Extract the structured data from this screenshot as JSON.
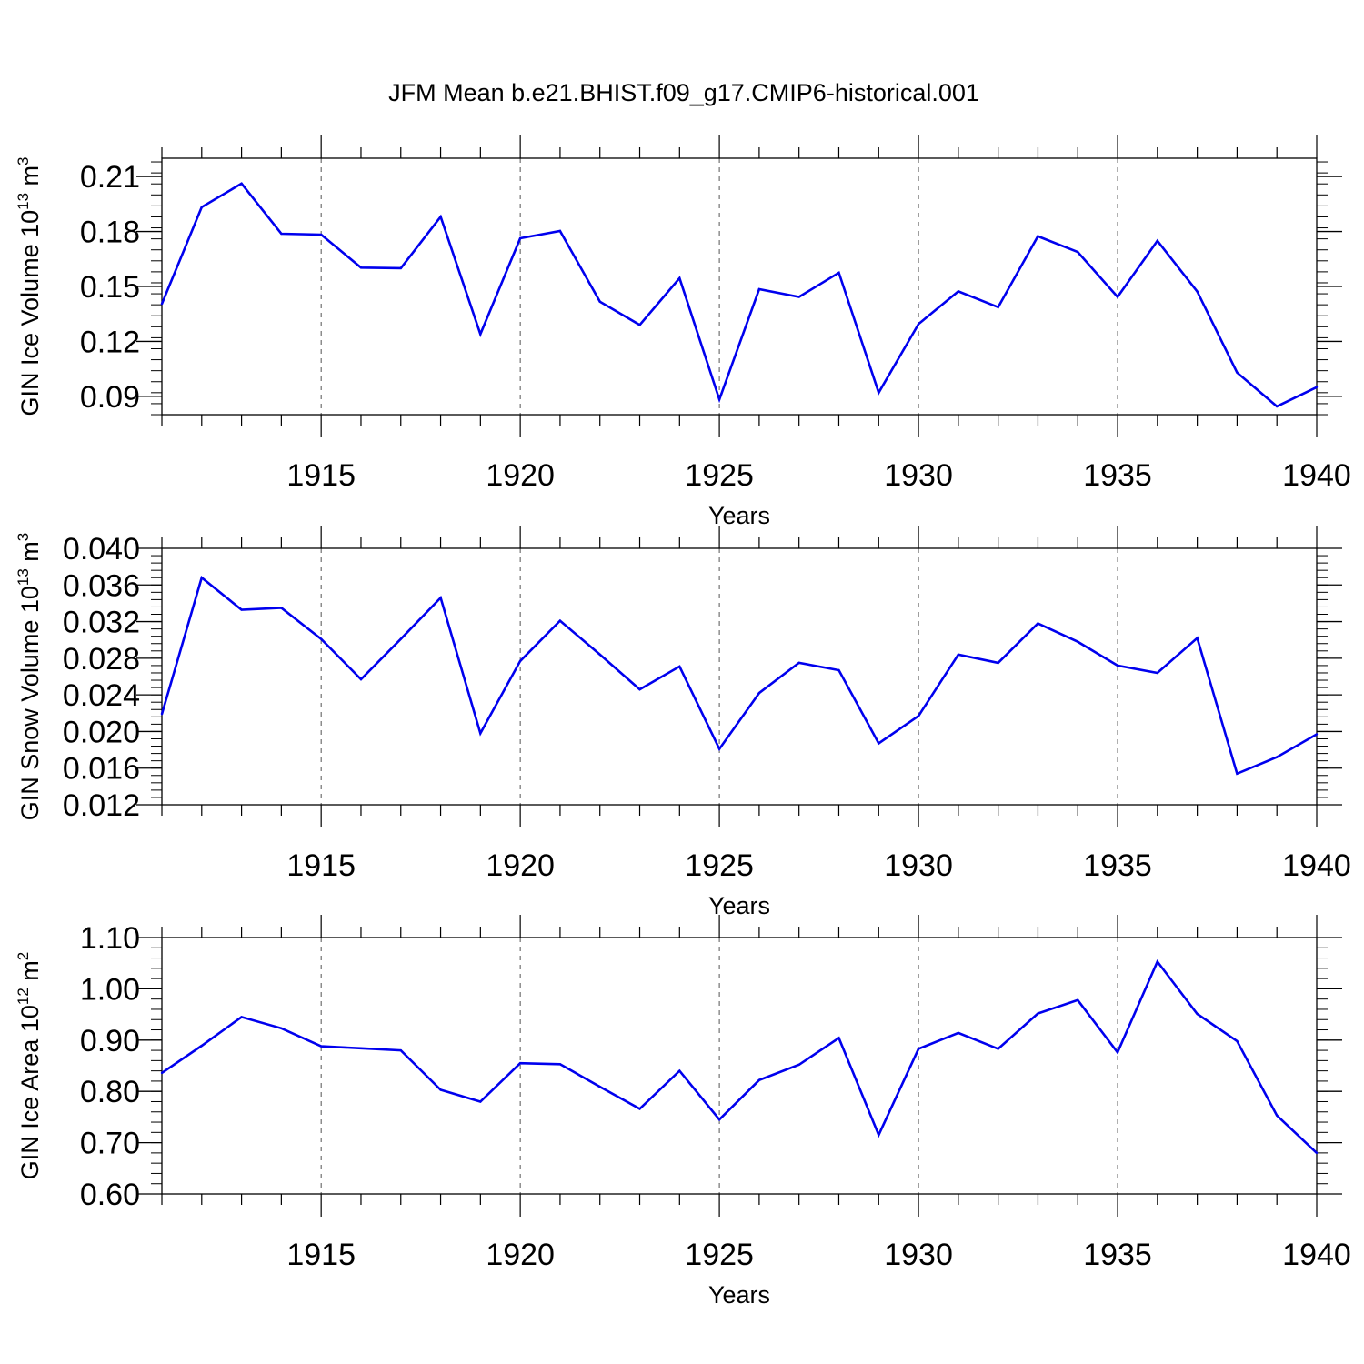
{
  "title": "JFM Mean b.e21.BHIST.f09_g17.CMIP6-historical.001",
  "colors": {
    "line": "#0000ee",
    "axis": "#000000",
    "grid": "#555555",
    "background": "#ffffff"
  },
  "chart_data": [
    {
      "type": "line",
      "ylabel_main": "GIN Ice Volume 10",
      "ylabel_exp": "13",
      "ylabel_unit": " m",
      "ylabel_unit_exp": "3",
      "xlabel": "Years",
      "xlim": [
        1911,
        1940
      ],
      "ylim": [
        0.08,
        0.22
      ],
      "yticks": [
        0.09,
        0.12,
        0.15,
        0.18,
        0.21
      ],
      "ytick_labels": [
        "0.09",
        "0.12",
        "0.15",
        "0.18",
        "0.21"
      ],
      "xticks": [
        1915,
        1920,
        1925,
        1930,
        1935,
        1940
      ],
      "xtick_labels": [
        "1915",
        "1920",
        "1925",
        "1930",
        "1935",
        "1940"
      ],
      "x": [
        1911,
        1912,
        1913,
        1914,
        1915,
        1916,
        1917,
        1918,
        1919,
        1920,
        1921,
        1922,
        1923,
        1924,
        1925,
        1926,
        1927,
        1928,
        1929,
        1930,
        1931,
        1932,
        1933,
        1934,
        1935,
        1936,
        1937,
        1938,
        1939,
        1940
      ],
      "values": [
        0.1405,
        0.1933,
        0.2062,
        0.1788,
        0.1783,
        0.1603,
        0.16,
        0.1881,
        0.124,
        0.1763,
        0.1803,
        0.1417,
        0.129,
        0.1545,
        0.0883,
        0.1485,
        0.1443,
        0.1575,
        0.092,
        0.1295,
        0.1473,
        0.1387,
        0.1774,
        0.1688,
        0.1443,
        0.1749,
        0.1472,
        0.103,
        0.0845,
        0.095
      ]
    },
    {
      "type": "line",
      "ylabel_main": "GIN Snow Volume 10",
      "ylabel_exp": "13",
      "ylabel_unit": " m",
      "ylabel_unit_exp": "3",
      "xlabel": "Years",
      "xlim": [
        1911,
        1940
      ],
      "ylim": [
        0.012,
        0.04
      ],
      "yticks": [
        0.012,
        0.016,
        0.02,
        0.024,
        0.028,
        0.032,
        0.036,
        0.04
      ],
      "ytick_labels": [
        "0.012",
        "0.016",
        "0.020",
        "0.024",
        "0.028",
        "0.032",
        "0.036",
        "0.040"
      ],
      "xticks": [
        1915,
        1920,
        1925,
        1930,
        1935,
        1940
      ],
      "xtick_labels": [
        "1915",
        "1920",
        "1925",
        "1930",
        "1935",
        "1940"
      ],
      "x": [
        1911,
        1912,
        1913,
        1914,
        1915,
        1916,
        1917,
        1918,
        1919,
        1920,
        1921,
        1922,
        1923,
        1924,
        1925,
        1926,
        1927,
        1928,
        1929,
        1930,
        1931,
        1932,
        1933,
        1934,
        1935,
        1936,
        1937,
        1938,
        1939,
        1940
      ],
      "values": [
        0.0219,
        0.0368,
        0.0333,
        0.0335,
        0.0301,
        0.0257,
        0.0301,
        0.0346,
        0.0198,
        0.0277,
        0.0321,
        0.0284,
        0.0246,
        0.0271,
        0.0181,
        0.0242,
        0.0275,
        0.0267,
        0.0187,
        0.0217,
        0.0284,
        0.0275,
        0.0318,
        0.0298,
        0.0272,
        0.0264,
        0.0302,
        0.0154,
        0.0172,
        0.0197
      ]
    },
    {
      "type": "line",
      "ylabel_main": "GIN Ice Area 10",
      "ylabel_exp": "12",
      "ylabel_unit": " m",
      "ylabel_unit_exp": "2",
      "xlabel": "Years",
      "xlim": [
        1911,
        1940
      ],
      "ylim": [
        0.6,
        1.1
      ],
      "yticks": [
        0.6,
        0.7,
        0.8,
        0.9,
        1.0,
        1.1
      ],
      "ytick_labels": [
        "0.60",
        "0.70",
        "0.80",
        "0.90",
        "1.00",
        "1.10"
      ],
      "xticks": [
        1915,
        1920,
        1925,
        1930,
        1935,
        1940
      ],
      "xtick_labels": [
        "1915",
        "1920",
        "1925",
        "1930",
        "1935",
        "1940"
      ],
      "x": [
        1911,
        1912,
        1913,
        1914,
        1915,
        1916,
        1917,
        1918,
        1919,
        1920,
        1921,
        1922,
        1923,
        1924,
        1925,
        1926,
        1927,
        1928,
        1929,
        1930,
        1931,
        1932,
        1933,
        1934,
        1935,
        1936,
        1937,
        1938,
        1939,
        1940
      ],
      "values": [
        0.836,
        0.889,
        0.945,
        0.923,
        0.888,
        0.884,
        0.88,
        0.803,
        0.78,
        0.855,
        0.853,
        0.809,
        0.766,
        0.84,
        0.745,
        0.822,
        0.852,
        0.904,
        0.715,
        0.883,
        0.914,
        0.883,
        0.952,
        0.978,
        0.876,
        1.053,
        0.951,
        0.898,
        0.753,
        0.68
      ]
    }
  ]
}
